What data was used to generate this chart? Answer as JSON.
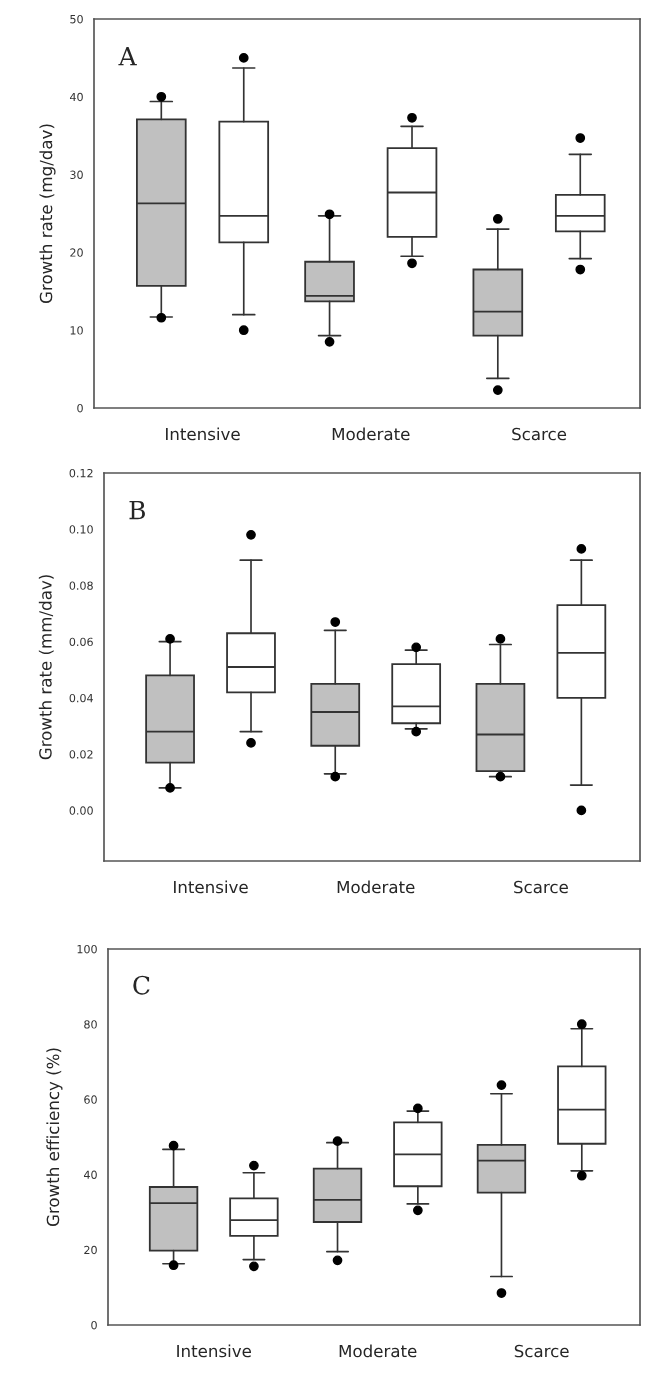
{
  "chart_data": [
    {
      "type": "box",
      "ylabel": "Growth rate (mg/dav)",
      "annotations": [
        "A"
      ],
      "categories": [
        "Intensive",
        "Moderate",
        "Scarce"
      ],
      "ylim": [
        0,
        50
      ],
      "yticks": [
        0,
        10,
        20,
        30,
        40,
        50
      ],
      "series": [
        {
          "color": "#c0c0c0",
          "boxes": [
            {
              "low": 11.7,
              "q1": 15.7,
              "median": 26.3,
              "q3": 37.1,
              "high": 39.4,
              "outliers": [
                40.0,
                11.6
              ]
            },
            {
              "low": 9.3,
              "q1": 13.7,
              "median": 14.4,
              "q3": 18.8,
              "high": 24.7,
              "outliers": [
                24.9,
                8.5
              ]
            },
            {
              "low": 3.8,
              "q1": 9.3,
              "median": 12.4,
              "q3": 17.8,
              "high": 23.0,
              "outliers": [
                24.3,
                2.3
              ]
            }
          ]
        },
        {
          "color": "#ffffff",
          "boxes": [
            {
              "low": 12.0,
              "q1": 21.3,
              "median": 24.7,
              "q3": 36.8,
              "high": 43.7,
              "outliers": [
                45.0,
                10.0
              ]
            },
            {
              "low": 19.5,
              "q1": 22.0,
              "median": 27.7,
              "q3": 33.4,
              "high": 36.2,
              "outliers": [
                37.3,
                18.6
              ]
            },
            {
              "low": 19.2,
              "q1": 22.7,
              "median": 24.7,
              "q3": 27.4,
              "high": 32.6,
              "outliers": [
                34.7,
                17.8
              ]
            }
          ]
        }
      ]
    },
    {
      "type": "box",
      "ylabel": "Growth rate (mm/dav)",
      "annotations": [
        "B"
      ],
      "categories": [
        "Intensive",
        "Moderate",
        "Scarce"
      ],
      "ylim": [
        -0.018,
        0.12
      ],
      "yticks": [
        {
          "value": 0,
          "label": "0.00"
        },
        {
          "value": 0.02,
          "label": "0.02"
        },
        {
          "value": 0.04,
          "label": "0.04"
        },
        {
          "value": 0.06,
          "label": "0.06"
        },
        {
          "value": 0.08,
          "label": "0.08"
        },
        {
          "value": 0.1,
          "label": "0.10"
        },
        {
          "value": 0.12,
          "label": "0.12"
        }
      ],
      "series": [
        {
          "color": "#c0c0c0",
          "boxes": [
            {
              "low": 0.008,
              "q1": 0.017,
              "median": 0.028,
              "q3": 0.048,
              "high": 0.06,
              "outliers": [
                0.061,
                0.008
              ]
            },
            {
              "low": 0.013,
              "q1": 0.023,
              "median": 0.035,
              "q3": 0.045,
              "high": 0.064,
              "outliers": [
                0.067,
                0.012
              ]
            },
            {
              "low": 0.012,
              "q1": 0.014,
              "median": 0.027,
              "q3": 0.045,
              "high": 0.059,
              "outliers": [
                0.061,
                0.012
              ]
            }
          ]
        },
        {
          "color": "#ffffff",
          "boxes": [
            {
              "low": 0.028,
              "q1": 0.042,
              "median": 0.051,
              "q3": 0.063,
              "high": 0.089,
              "outliers": [
                0.098,
                0.024
              ]
            },
            {
              "low": 0.029,
              "q1": 0.031,
              "median": 0.037,
              "q3": 0.052,
              "high": 0.057,
              "outliers": [
                0.058,
                0.028
              ]
            },
            {
              "low": 0.009,
              "q1": 0.04,
              "median": 0.056,
              "q3": 0.073,
              "high": 0.089,
              "outliers": [
                0.093,
                0.0
              ]
            }
          ]
        }
      ]
    },
    {
      "type": "box",
      "ylabel": "Growth efficiency (%)",
      "annotations": [
        "C"
      ],
      "categories": [
        "Intensive",
        "Moderate",
        "Scarce"
      ],
      "ylim": [
        0,
        100
      ],
      "yticks": [
        0,
        20,
        40,
        60,
        80,
        100
      ],
      "series": [
        {
          "color": "#c0c0c0",
          "boxes": [
            {
              "low": 16.3,
              "q1": 19.8,
              "median": 32.4,
              "q3": 36.7,
              "high": 46.7,
              "outliers": [
                47.7,
                15.9
              ]
            },
            {
              "low": 19.5,
              "q1": 27.4,
              "median": 33.3,
              "q3": 41.6,
              "high": 48.5,
              "outliers": [
                48.9,
                17.2
              ]
            },
            {
              "low": 12.9,
              "q1": 35.2,
              "median": 43.7,
              "q3": 47.9,
              "high": 61.5,
              "outliers": [
                63.8,
                8.5
              ]
            }
          ]
        },
        {
          "color": "#ffffff",
          "boxes": [
            {
              "low": 17.4,
              "q1": 23.7,
              "median": 27.9,
              "q3": 33.7,
              "high": 40.5,
              "outliers": [
                42.4,
                15.6
              ]
            },
            {
              "low": 32.2,
              "q1": 36.9,
              "median": 45.4,
              "q3": 53.9,
              "high": 56.9,
              "outliers": [
                57.6,
                30.5
              ]
            },
            {
              "low": 41.0,
              "q1": 48.2,
              "median": 57.3,
              "q3": 68.8,
              "high": 78.8,
              "outliers": [
                80.0,
                39.7
              ]
            }
          ]
        }
      ]
    }
  ]
}
